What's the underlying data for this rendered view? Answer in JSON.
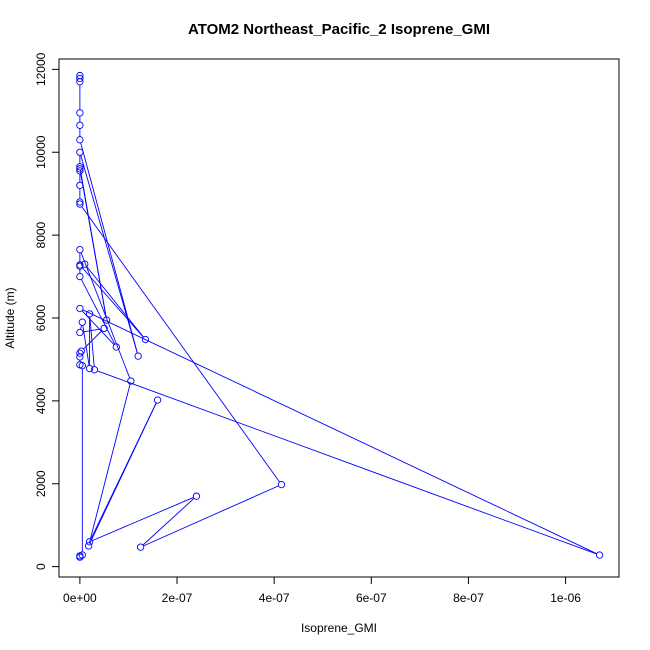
{
  "chart_data": {
    "type": "line",
    "title": "ATOM2 Northeast_Pacific_2 Isoprene_GMI",
    "xlabel": "Isoprene_GMI",
    "ylabel": "Altitude (m)",
    "xlim": [
      -4.3e-08,
      1.11e-06
    ],
    "ylim": [
      -250,
      12250
    ],
    "x_ticks": [
      0,
      2e-07,
      4e-07,
      6e-07,
      8e-07,
      1e-06
    ],
    "x_tick_labels": [
      "0e+00",
      "2e-07",
      "4e-07",
      "6e-07",
      "8e-07",
      "1e-06"
    ],
    "y_ticks": [
      0,
      2000,
      4000,
      6000,
      8000,
      10000,
      12000
    ],
    "y_tick_labels": [
      "0",
      "2000",
      "4000",
      "6000",
      "8000",
      "10000",
      "12000"
    ],
    "grid": false,
    "color": "#0000ff",
    "marker": "open-circle",
    "series": [
      {
        "points": [
          {
            "x": 0,
            "y": 11850
          },
          {
            "x": 0,
            "y": 11780
          },
          {
            "x": 0,
            "y": 11700
          },
          {
            "x": 0,
            "y": 10950
          },
          {
            "x": 0,
            "y": 10650
          },
          {
            "x": 0,
            "y": 10300
          },
          {
            "x": 1.2e-07,
            "y": 5080
          },
          {
            "x": 0,
            "y": 10000
          },
          {
            "x": 0,
            "y": 9650
          },
          {
            "x": 5.5e-08,
            "y": 5950
          },
          {
            "x": 0,
            "y": 9600
          },
          {
            "x": 0,
            "y": 9550
          },
          {
            "x": 0,
            "y": 9200
          },
          {
            "x": 0,
            "y": 8800
          },
          {
            "x": 0,
            "y": 8750
          },
          {
            "x": 4.15e-07,
            "y": 1980
          },
          {
            "x": 1.25e-07,
            "y": 470
          },
          {
            "x": 2.4e-07,
            "y": 1700
          },
          {
            "x": 2e-08,
            "y": 600
          },
          {
            "x": 1.6e-07,
            "y": 4020
          },
          {
            "x": 1.8e-08,
            "y": 500
          },
          {
            "x": 1.05e-07,
            "y": 4480
          },
          {
            "x": 0,
            "y": 7650
          },
          {
            "x": 0,
            "y": 7280
          },
          {
            "x": 1.35e-07,
            "y": 5480
          },
          {
            "x": 1e-08,
            "y": 7300
          },
          {
            "x": 0,
            "y": 7250
          },
          {
            "x": 0,
            "y": 7000
          },
          {
            "x": 7.5e-08,
            "y": 5300
          },
          {
            "x": 0,
            "y": 6230
          },
          {
            "x": 1.07e-06,
            "y": 280
          },
          {
            "x": 3e-08,
            "y": 4750
          },
          {
            "x": 2e-08,
            "y": 6100
          },
          {
            "x": 2e-08,
            "y": 4780
          },
          {
            "x": 5e-09,
            "y": 5900
          },
          {
            "x": 0,
            "y": 5650
          },
          {
            "x": 5e-08,
            "y": 5750
          },
          {
            "x": 3e-09,
            "y": 5200
          },
          {
            "x": 0,
            "y": 5150
          },
          {
            "x": 0,
            "y": 5060
          },
          {
            "x": 0,
            "y": 4870
          },
          {
            "x": 5e-09,
            "y": 4850
          },
          {
            "x": 5e-09,
            "y": 280
          },
          {
            "x": 0,
            "y": 230
          },
          {
            "x": 0,
            "y": 260
          }
        ]
      }
    ]
  }
}
